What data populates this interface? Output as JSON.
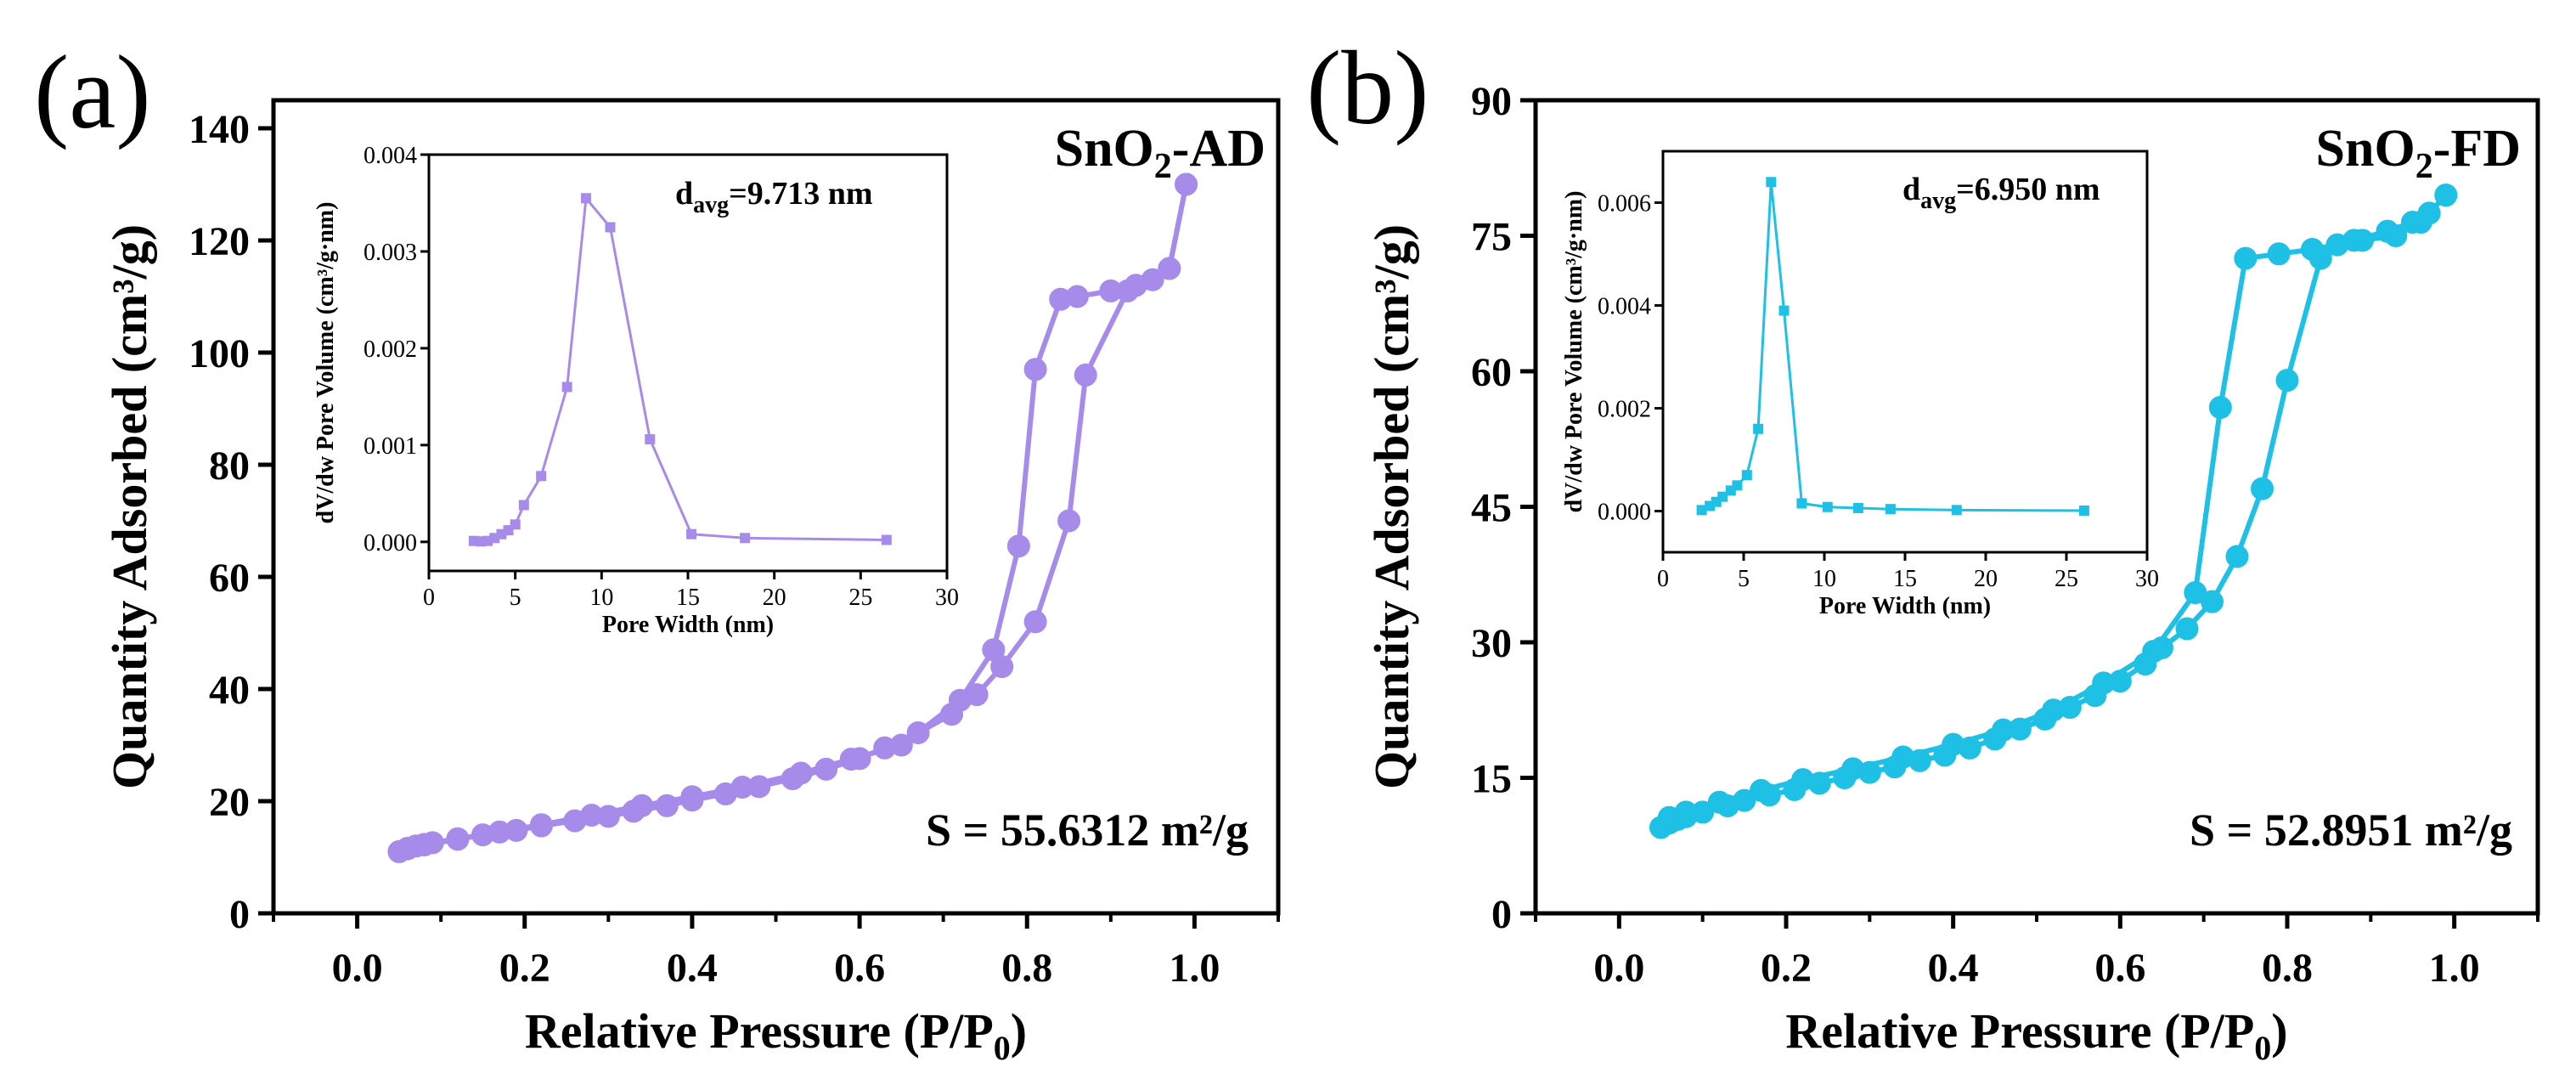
{
  "chart_data": [
    {
      "type": "line",
      "panel_label": "(a)",
      "color": "#a78bea",
      "sample": {
        "main": "SnO",
        "sub": "2",
        "rest": "-AD"
      },
      "surface_area": "S = 55.6312 m²/g",
      "xlabel": {
        "main": "Relative Pressure (P/P",
        "sub": "0",
        "end": ")"
      },
      "ylabel": "Quantity Adsorbed (cm³/g)",
      "xlim": [
        -0.1,
        1.1
      ],
      "ylim": [
        0,
        145
      ],
      "xticks": [
        "0.0",
        "0.2",
        "0.4",
        "0.6",
        "0.8",
        "1.0"
      ],
      "yticks": [
        "0",
        "20",
        "40",
        "60",
        "80",
        "100",
        "120",
        "140"
      ],
      "series": [
        {
          "name": "adsorption",
          "x": [
            0.05,
            0.06,
            0.07,
            0.08,
            0.09,
            0.12,
            0.15,
            0.19,
            0.22,
            0.26,
            0.3,
            0.33,
            0.37,
            0.4,
            0.44,
            0.48,
            0.52,
            0.56,
            0.6,
            0.63,
            0.67,
            0.71,
            0.74,
            0.77,
            0.81,
            0.85,
            0.87,
            0.92,
            0.95,
            0.97,
            0.99
          ],
          "y": [
            11,
            11.5,
            12,
            12.3,
            12.6,
            13.3,
            14,
            14.8,
            15.6,
            16.5,
            17.3,
            18.2,
            19.2,
            20.2,
            21.3,
            22.6,
            24,
            25.7,
            27.6,
            29.5,
            32.2,
            35.5,
            39,
            44,
            52,
            70,
            96,
            111,
            113,
            115,
            130
          ]
        },
        {
          "name": "desorption",
          "x": [
            0.99,
            0.97,
            0.93,
            0.9,
            0.86,
            0.84,
            0.81,
            0.79,
            0.76,
            0.72,
            0.65,
            0.59,
            0.53,
            0.46,
            0.4,
            0.34,
            0.28,
            0.22,
            0.17,
            0.12,
            0.08,
            0.06
          ],
          "y": [
            130,
            115,
            112,
            111,
            110,
            109.5,
            97,
            65.5,
            47,
            38,
            30,
            27.5,
            25,
            22.5,
            20.8,
            19.2,
            17.5,
            15.8,
            14.5,
            13.2,
            12.2,
            11.6
          ]
        }
      ],
      "inset": {
        "xlabel": "Pore Width (nm)",
        "ylabel": "dV/dw Pore Volume (cm³/g·nm)",
        "xlim": [
          0,
          30
        ],
        "ylim": [
          -0.0003,
          0.004
        ],
        "xticks": [
          "0",
          "5",
          "10",
          "15",
          "20",
          "25",
          "30"
        ],
        "yticks": [
          "0.000",
          "0.001",
          "0.002",
          "0.003",
          "0.004"
        ],
        "davg": {
          "main": "d",
          "sub": "avg",
          "rest": "=9.713 nm"
        },
        "x": [
          2.6,
          3.0,
          3.4,
          3.8,
          4.2,
          4.6,
          5.0,
          5.5,
          6.5,
          8.0,
          9.1,
          10.5,
          12.8,
          15.2,
          18.3,
          26.5
        ],
        "y": [
          1e-05,
          5e-06,
          1e-05,
          4e-05,
          8e-05,
          0.00012,
          0.00018,
          0.00038,
          0.00068,
          0.0016,
          0.00355,
          0.00325,
          0.00106,
          8e-05,
          4e-05,
          2e-05
        ]
      }
    },
    {
      "type": "line",
      "panel_label": "(b)",
      "color": "#1ec0e6",
      "sample": {
        "main": "SnO",
        "sub": "2",
        "rest": "-FD"
      },
      "surface_area": "S = 52.8951 m²/g",
      "xlabel": {
        "main": "Relative Pressure (P/P",
        "sub": "0",
        "end": ")"
      },
      "ylabel": "Quantity Adsorbed (cm³/g)",
      "xlim": [
        -0.1,
        1.1
      ],
      "ylim": [
        0,
        90
      ],
      "xticks": [
        "0.0",
        "0.2",
        "0.4",
        "0.6",
        "0.8",
        "1.0"
      ],
      "yticks": [
        "0",
        "15",
        "30",
        "45",
        "60",
        "75",
        "90"
      ],
      "series": [
        {
          "name": "adsorption",
          "x": [
            0.05,
            0.06,
            0.07,
            0.08,
            0.1,
            0.13,
            0.15,
            0.18,
            0.21,
            0.24,
            0.27,
            0.3,
            0.33,
            0.36,
            0.39,
            0.42,
            0.45,
            0.48,
            0.51,
            0.54,
            0.57,
            0.6,
            0.63,
            0.65,
            0.68,
            0.71,
            0.74,
            0.77,
            0.8,
            0.84,
            0.88,
            0.92,
            0.95,
            0.97,
            0.99
          ],
          "y": [
            9.5,
            10,
            10.4,
            10.7,
            11.2,
            11.9,
            12.5,
            13.1,
            13.7,
            14.4,
            15,
            15.6,
            16.2,
            16.9,
            17.5,
            18.3,
            19.3,
            20.4,
            21.5,
            22.8,
            24.1,
            25.7,
            27.6,
            29.4,
            31.5,
            34.5,
            39.5,
            47,
            59,
            72.5,
            74.5,
            75.5,
            76.5,
            77.5,
            79.5
          ]
        },
        {
          "name": "desorption",
          "x": [
            0.99,
            0.96,
            0.93,
            0.89,
            0.86,
            0.83,
            0.79,
            0.75,
            0.72,
            0.69,
            0.64,
            0.58,
            0.52,
            0.46,
            0.4,
            0.34,
            0.28,
            0.22,
            0.17,
            0.12,
            0.08,
            0.06
          ],
          "y": [
            79.5,
            76.5,
            75,
            74.5,
            74,
            73.5,
            73,
            72.5,
            56,
            35.5,
            29,
            25.5,
            22.5,
            20.3,
            18.7,
            17.3,
            16,
            14.8,
            13.6,
            12.3,
            11.2,
            10.6
          ]
        }
      ],
      "inset": {
        "xlabel": "Pore Width (nm)",
        "ylabel": "dV/dw Pore Volume (cm³/g·nm)",
        "xlim": [
          0,
          30
        ],
        "ylim": [
          -0.0008,
          0.007
        ],
        "xticks": [
          "0",
          "5",
          "10",
          "15",
          "20",
          "25",
          "30"
        ],
        "yticks": [
          "0.000",
          "0.002",
          "0.004",
          "0.006"
        ],
        "davg": {
          "main": "d",
          "sub": "avg",
          "rest": "=6.950 nm"
        },
        "x": [
          2.4,
          2.9,
          3.3,
          3.7,
          4.2,
          4.6,
          5.2,
          5.9,
          6.7,
          7.5,
          8.6,
          10.2,
          12.1,
          14.1,
          18.2,
          26.1
        ],
        "y": [
          2e-05,
          0.0001,
          0.00018,
          0.00028,
          0.0004,
          0.0005,
          0.0007,
          0.0016,
          0.0064,
          0.0039,
          0.00015,
          8e-05,
          6e-05,
          4e-05,
          2e-05,
          1e-05
        ]
      }
    }
  ]
}
